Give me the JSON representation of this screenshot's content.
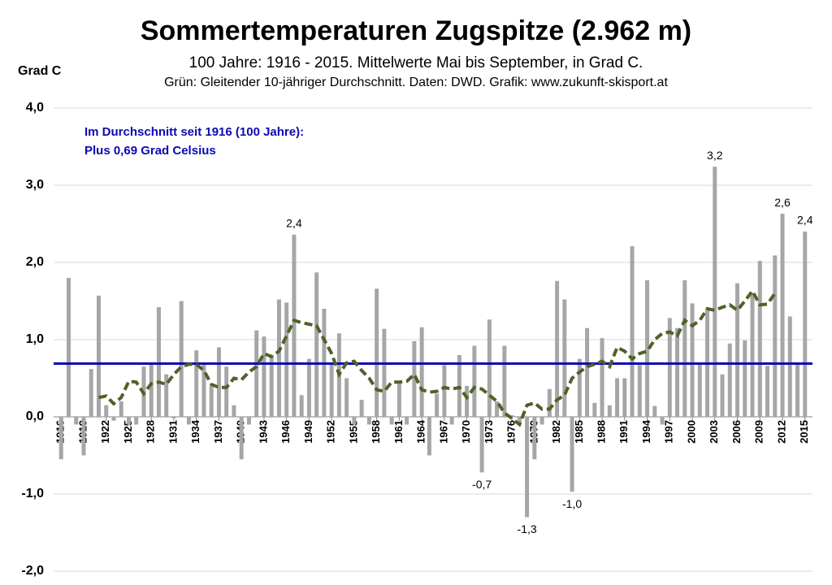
{
  "chart_data": {
    "type": "bar",
    "title": "Sommertemperaturen Zugspitze (2.962 m)",
    "subtitle": "100 Jahre: 1916 - 2015. Mittelwerte Mai bis September, in Grad C.",
    "note": "Grün: Gleitender 10-jähriger Durchschnitt. Daten: DWD. Grafik: www.zukunft-skisport.at",
    "y_label": "Grad C",
    "annotation": [
      "Im Durchschnitt seit 1916 (100 Jahre):",
      "Plus 0,69 Grad Celsius"
    ],
    "x": [
      1916,
      1917,
      1918,
      1919,
      1920,
      1921,
      1922,
      1923,
      1924,
      1925,
      1926,
      1927,
      1928,
      1929,
      1930,
      1931,
      1932,
      1933,
      1934,
      1935,
      1936,
      1937,
      1938,
      1939,
      1940,
      1941,
      1942,
      1943,
      1944,
      1945,
      1946,
      1947,
      1948,
      1949,
      1950,
      1951,
      1952,
      1953,
      1954,
      1955,
      1956,
      1957,
      1958,
      1959,
      1960,
      1961,
      1962,
      1963,
      1964,
      1965,
      1966,
      1967,
      1968,
      1969,
      1970,
      1971,
      1972,
      1973,
      1974,
      1975,
      1976,
      1977,
      1978,
      1979,
      1980,
      1981,
      1982,
      1983,
      1984,
      1985,
      1986,
      1987,
      1988,
      1989,
      1990,
      1991,
      1992,
      1993,
      1994,
      1995,
      1996,
      1997,
      1998,
      1999,
      2000,
      2001,
      2002,
      2003,
      2004,
      2005,
      2006,
      2007,
      2008,
      2009,
      2010,
      2011,
      2012,
      2013,
      2014,
      2015
    ],
    "xlim": [
      1915,
      2016
    ],
    "xticks": [
      1916,
      1919,
      1922,
      1925,
      1928,
      1931,
      1934,
      1937,
      1940,
      1943,
      1946,
      1949,
      1952,
      1955,
      1958,
      1961,
      1964,
      1967,
      1970,
      1973,
      1976,
      1979,
      1982,
      1985,
      1988,
      1991,
      1994,
      1997,
      2000,
      2003,
      2006,
      2009,
      2012,
      2015
    ],
    "ylim": [
      -2,
      4
    ],
    "yticks": [
      {
        "value": -2,
        "label": "-2,0"
      },
      {
        "value": -1,
        "label": "-1,0"
      },
      {
        "value": 0,
        "label": "0,0"
      },
      {
        "value": 1,
        "label": "1,0"
      },
      {
        "value": 2,
        "label": "2,0"
      },
      {
        "value": 3,
        "label": "3,0"
      },
      {
        "value": 4,
        "label": "4,0"
      }
    ],
    "grid": true,
    "series": [
      {
        "type": "bar",
        "color": "#a6a6a6",
        "values": [
          -0.55,
          1.8,
          -0.1,
          -0.5,
          0.62,
          1.57,
          0.15,
          -0.05,
          0.2,
          -0.1,
          -0.1,
          0.65,
          0.7,
          1.42,
          0.55,
          -0.02,
          1.5,
          -0.1,
          0.86,
          0.7,
          0.4,
          0.9,
          0.65,
          0.15,
          -0.55,
          -0.1,
          1.12,
          1.04,
          0.8,
          1.52,
          1.48,
          2.36,
          0.28,
          0.75,
          1.87,
          1.4,
          0.7,
          1.08,
          0.5,
          -0.1,
          0.22,
          -0.1,
          1.66,
          1.14,
          -0.1,
          0.45,
          -0.1,
          0.98,
          1.16,
          -0.5,
          0.3,
          0.67,
          -0.1,
          0.8,
          0.4,
          0.92,
          -0.72,
          1.26,
          0.2,
          0.92,
          0.02,
          -0.1,
          -1.3,
          -0.55,
          -0.1,
          0.36,
          1.76,
          1.52,
          -0.97,
          0.75,
          1.15,
          0.18,
          1.02,
          0.15,
          0.5,
          0.5,
          2.21,
          0.67,
          1.77,
          0.14,
          -0.1,
          1.28,
          1.15,
          1.77,
          1.47,
          0.68,
          1.4,
          3.24,
          0.55,
          0.95,
          1.73,
          0.99,
          1.6,
          2.02,
          0.66,
          2.09,
          2.63,
          1.3,
          0.68,
          2.4
        ],
        "value_labels": [
          null,
          null,
          null,
          null,
          null,
          null,
          null,
          null,
          null,
          null,
          null,
          null,
          null,
          null,
          null,
          null,
          null,
          null,
          null,
          null,
          null,
          null,
          null,
          null,
          null,
          null,
          null,
          null,
          null,
          null,
          null,
          "2,4",
          null,
          null,
          null,
          null,
          null,
          null,
          null,
          null,
          null,
          null,
          null,
          null,
          null,
          null,
          null,
          null,
          null,
          null,
          null,
          null,
          null,
          null,
          null,
          null,
          "-0,7",
          null,
          null,
          null,
          null,
          null,
          "-1,3",
          null,
          null,
          null,
          null,
          null,
          "-1,0",
          null,
          null,
          null,
          null,
          null,
          null,
          null,
          null,
          null,
          null,
          null,
          null,
          null,
          null,
          null,
          null,
          null,
          null,
          "3,2",
          null,
          null,
          null,
          null,
          null,
          null,
          null,
          null,
          "2,6",
          null,
          null,
          "2,4"
        ]
      },
      {
        "type": "line",
        "color": "#4f6228",
        "dashed": true,
        "values": [
          null,
          null,
          null,
          null,
          null,
          0.25,
          0.27,
          0.17,
          0.25,
          0.46,
          0.45,
          0.3,
          0.43,
          0.45,
          0.42,
          0.55,
          0.65,
          0.68,
          0.68,
          0.6,
          0.42,
          0.38,
          0.38,
          0.5,
          0.48,
          0.58,
          0.65,
          0.82,
          0.78,
          0.85,
          1.05,
          1.25,
          1.22,
          1.2,
          1.18,
          1.0,
          0.82,
          0.55,
          0.7,
          0.72,
          0.6,
          0.5,
          0.35,
          0.33,
          0.45,
          0.45,
          0.46,
          0.55,
          0.35,
          0.32,
          0.33,
          0.38,
          0.36,
          0.38,
          0.25,
          0.38,
          0.36,
          0.28,
          0.2,
          0.05,
          -0.02,
          -0.1,
          0.15,
          0.18,
          0.1,
          0.1,
          0.22,
          0.28,
          0.5,
          0.58,
          0.65,
          0.68,
          0.72,
          0.65,
          0.9,
          0.85,
          0.75,
          0.82,
          0.85,
          1.0,
          1.08,
          1.1,
          1.05,
          1.25,
          1.18,
          1.25,
          1.4,
          1.38,
          1.42,
          1.45,
          1.38,
          1.5,
          1.63,
          1.45,
          1.46,
          1.6,
          null,
          null,
          null,
          null
        ]
      }
    ],
    "mean_line": {
      "value": 0.69,
      "color": "#0a0ab4"
    }
  }
}
